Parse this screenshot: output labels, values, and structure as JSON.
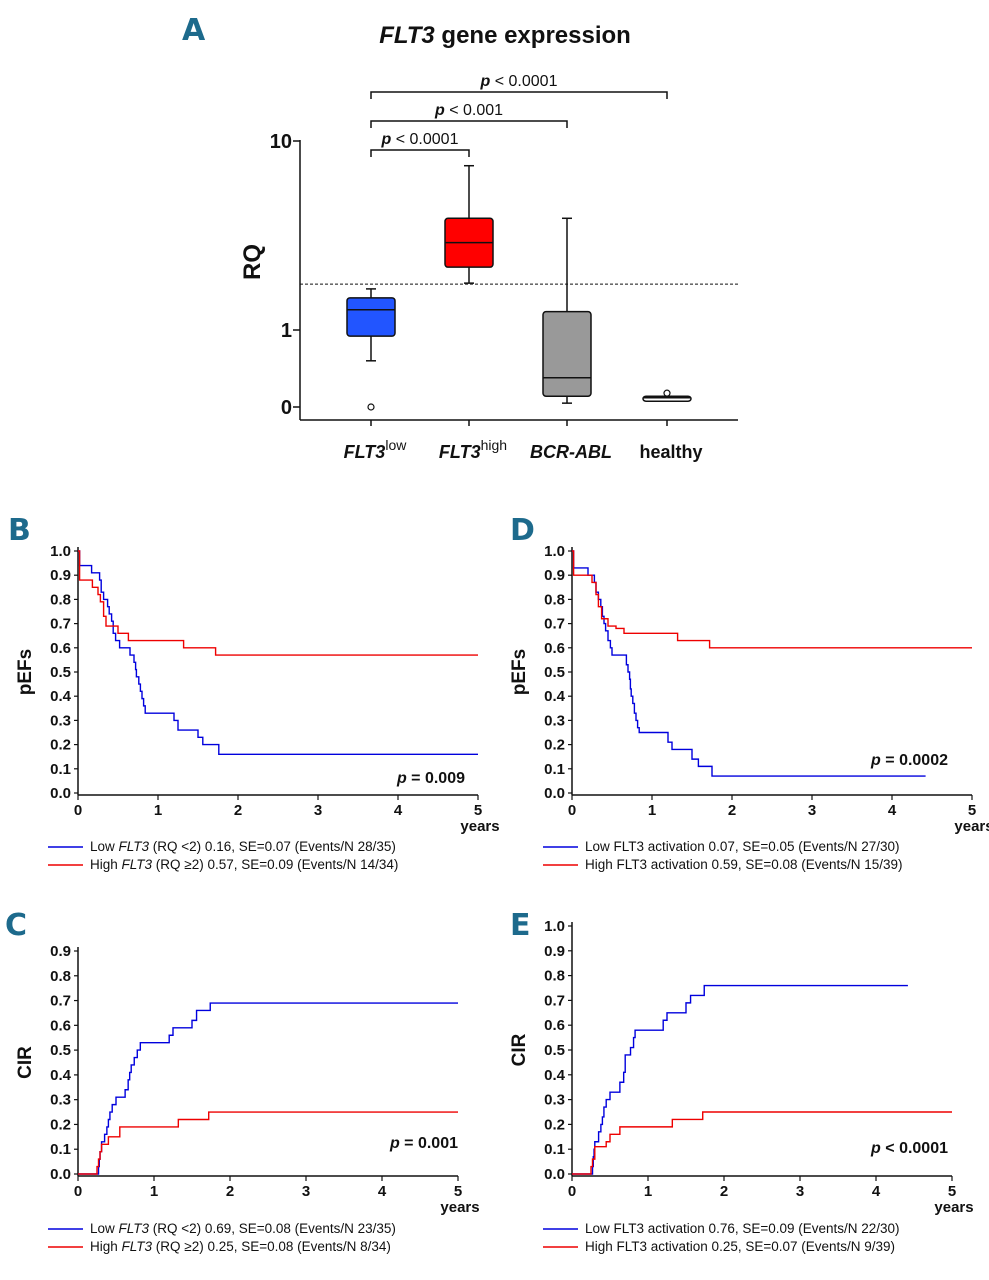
{
  "chart_data": [
    {
      "panel": "A",
      "type": "box",
      "title_italic": "FLT3",
      "title_rest": " gene expression",
      "ylabel": "RQ",
      "yticks": [
        "10",
        "1",
        "0"
      ],
      "threshold_line": 1.75,
      "categories": [
        {
          "main": "FLT3",
          "sup": "low",
          "italic": true,
          "color": "#2255ff",
          "q1": 0.92,
          "median": 1.28,
          "q3": 1.48,
          "whisker_low": 0.6,
          "whisker_high": 1.65,
          "outliers": [
            0
          ]
        },
        {
          "main": "FLT3",
          "sup": "high",
          "italic": true,
          "color": "#ff0000",
          "q1": 2.15,
          "median": 2.9,
          "q3": 3.9,
          "whisker_low": 1.77,
          "whisker_high": 7.4,
          "outliers": []
        },
        {
          "main": "BCR-ABL",
          "sup": "",
          "italic": true,
          "color": "#999999",
          "q1": 0.14,
          "median": 0.38,
          "q3": 1.25,
          "whisker_low": 0.05,
          "whisker_high": 3.9,
          "outliers": []
        },
        {
          "main": "healthy",
          "sup": "",
          "italic": false,
          "color": "#ffffff",
          "q1": 0.1,
          "median": 0.12,
          "q3": 0.14,
          "whisker_low": 0.09,
          "whisker_high": 0.14,
          "outliers": [
            0.18
          ]
        }
      ],
      "comparisons": [
        {
          "from": 0,
          "to": 1,
          "p": "< 0.0001"
        },
        {
          "from": 0,
          "to": 2,
          "p": "< 0.001"
        },
        {
          "from": 0,
          "to": 3,
          "p": "< 0.0001"
        }
      ]
    },
    {
      "panel": "B",
      "type": "line",
      "ylabel": "pEFs",
      "xlabel": "years",
      "xlim": [
        0,
        5
      ],
      "ylim": [
        0,
        1.0
      ],
      "yticks": [
        "0.0",
        "0.1",
        "0.2",
        "0.3",
        "0.4",
        "0.5",
        "0.6",
        "0.7",
        "0.8",
        "0.9",
        "1.0"
      ],
      "xticks": [
        "0",
        "1",
        "2",
        "3",
        "4",
        "5"
      ],
      "p_text": "= 0.009",
      "series": [
        {
          "color": "#0000dd",
          "legend": [
            "Low ",
            "FLT3",
            " (RQ <2) 0.16, SE=0.07 (Events/N 28/35)"
          ],
          "steps": [
            [
              0,
              1.0
            ],
            [
              0.02,
              0.94
            ],
            [
              0.17,
              0.91
            ],
            [
              0.27,
              0.88
            ],
            [
              0.29,
              0.83
            ],
            [
              0.32,
              0.8
            ],
            [
              0.37,
              0.77
            ],
            [
              0.39,
              0.74
            ],
            [
              0.42,
              0.71
            ],
            [
              0.44,
              0.66
            ],
            [
              0.47,
              0.63
            ],
            [
              0.52,
              0.6
            ],
            [
              0.65,
              0.57
            ],
            [
              0.7,
              0.54
            ],
            [
              0.72,
              0.51
            ],
            [
              0.73,
              0.48
            ],
            [
              0.76,
              0.45
            ],
            [
              0.78,
              0.42
            ],
            [
              0.8,
              0.39
            ],
            [
              0.82,
              0.36
            ],
            [
              0.84,
              0.33
            ],
            [
              1.2,
              0.3
            ],
            [
              1.25,
              0.26
            ],
            [
              1.5,
              0.23
            ],
            [
              1.56,
              0.2
            ],
            [
              1.76,
              0.16
            ]
          ],
          "end": 5.0
        },
        {
          "color": "#ee0000",
          "legend": [
            "High ",
            "FLT3",
            " (RQ ≥2) 0.57, SE=0.09 (Events/N 14/34)"
          ],
          "steps": [
            [
              0,
              1.0
            ],
            [
              0.02,
              0.88
            ],
            [
              0.18,
              0.85
            ],
            [
              0.25,
              0.82
            ],
            [
              0.28,
              0.79
            ],
            [
              0.32,
              0.73
            ],
            [
              0.35,
              0.69
            ],
            [
              0.5,
              0.66
            ],
            [
              0.63,
              0.63
            ],
            [
              1.32,
              0.6
            ],
            [
              1.72,
              0.57
            ]
          ],
          "end": 5.0
        }
      ]
    },
    {
      "panel": "D",
      "type": "line",
      "ylabel": "pEFs",
      "xlabel": "years",
      "xlim": [
        0,
        5
      ],
      "ylim": [
        0,
        1.0
      ],
      "yticks": [
        "0.0",
        "0.1",
        "0.2",
        "0.3",
        "0.4",
        "0.5",
        "0.6",
        "0.7",
        "0.8",
        "0.9",
        "1.0"
      ],
      "xticks": [
        "0",
        "1",
        "2",
        "3",
        "4",
        "5"
      ],
      "p_text": "= 0.0002",
      "series": [
        {
          "color": "#0000dd",
          "legend": [
            "Low FLT3 activation 0.07, SE=0.05 (Events/N 27/30)",
            "",
            ""
          ],
          "steps": [
            [
              0,
              1.0
            ],
            [
              0.02,
              0.93
            ],
            [
              0.2,
              0.9
            ],
            [
              0.28,
              0.87
            ],
            [
              0.3,
              0.83
            ],
            [
              0.33,
              0.8
            ],
            [
              0.36,
              0.77
            ],
            [
              0.38,
              0.73
            ],
            [
              0.4,
              0.7
            ],
            [
              0.42,
              0.67
            ],
            [
              0.45,
              0.63
            ],
            [
              0.48,
              0.6
            ],
            [
              0.5,
              0.57
            ],
            [
              0.68,
              0.53
            ],
            [
              0.7,
              0.5
            ],
            [
              0.72,
              0.47
            ],
            [
              0.73,
              0.43
            ],
            [
              0.74,
              0.4
            ],
            [
              0.76,
              0.37
            ],
            [
              0.78,
              0.33
            ],
            [
              0.8,
              0.3
            ],
            [
              0.82,
              0.27
            ],
            [
              0.84,
              0.25
            ],
            [
              1.2,
              0.21
            ],
            [
              1.25,
              0.18
            ],
            [
              1.5,
              0.14
            ],
            [
              1.58,
              0.11
            ],
            [
              1.75,
              0.07
            ]
          ],
          "end": 4.42
        },
        {
          "color": "#ee0000",
          "legend": [
            "High FLT3 activation 0.59, SE=0.08 (Events/N 15/39)",
            "",
            ""
          ],
          "steps": [
            [
              0,
              1.0
            ],
            [
              0.02,
              0.9
            ],
            [
              0.25,
              0.87
            ],
            [
              0.3,
              0.82
            ],
            [
              0.33,
              0.77
            ],
            [
              0.37,
              0.72
            ],
            [
              0.45,
              0.69
            ],
            [
              0.55,
              0.68
            ],
            [
              0.65,
              0.66
            ],
            [
              1.32,
              0.63
            ],
            [
              1.72,
              0.6
            ]
          ],
          "end": 5.0
        }
      ]
    },
    {
      "panel": "C",
      "type": "line",
      "ylabel": "CIR",
      "xlabel": "years",
      "xlim": [
        0,
        5
      ],
      "ylim": [
        0,
        0.9
      ],
      "yticks": [
        "0.0",
        "0.1",
        "0.2",
        "0.3",
        "0.4",
        "0.5",
        "0.6",
        "0.7",
        "0.8",
        "0.9"
      ],
      "xticks": [
        "0",
        "1",
        "2",
        "3",
        "4",
        "5"
      ],
      "p_text": "= 0.001",
      "series": [
        {
          "color": "#0000dd",
          "legend": [
            "Low ",
            "FLT3",
            " (RQ <2) 0.69, SE=0.08 (Events/N 23/35)"
          ],
          "steps": [
            [
              0,
              0
            ],
            [
              0.27,
              0.03
            ],
            [
              0.28,
              0.06
            ],
            [
              0.29,
              0.09
            ],
            [
              0.31,
              0.13
            ],
            [
              0.35,
              0.16
            ],
            [
              0.38,
              0.19
            ],
            [
              0.4,
              0.22
            ],
            [
              0.42,
              0.25
            ],
            [
              0.45,
              0.28
            ],
            [
              0.5,
              0.31
            ],
            [
              0.62,
              0.34
            ],
            [
              0.66,
              0.38
            ],
            [
              0.68,
              0.41
            ],
            [
              0.7,
              0.44
            ],
            [
              0.74,
              0.47
            ],
            [
              0.78,
              0.5
            ],
            [
              0.82,
              0.53
            ],
            [
              1.2,
              0.56
            ],
            [
              1.25,
              0.59
            ],
            [
              1.5,
              0.62
            ],
            [
              1.56,
              0.66
            ],
            [
              1.74,
              0.69
            ]
          ],
          "end": 5.0
        },
        {
          "color": "#ee0000",
          "legend": [
            "High ",
            "FLT3",
            " (RQ ≥2) 0.25, SE=0.08 (Events/N 8/34)"
          ],
          "steps": [
            [
              0,
              0
            ],
            [
              0.25,
              0.03
            ],
            [
              0.27,
              0.06
            ],
            [
              0.29,
              0.09
            ],
            [
              0.31,
              0.12
            ],
            [
              0.4,
              0.15
            ],
            [
              0.55,
              0.19
            ],
            [
              1.32,
              0.22
            ],
            [
              1.72,
              0.25
            ]
          ],
          "end": 5.0
        }
      ]
    },
    {
      "panel": "E",
      "type": "line",
      "ylabel": "CIR",
      "xlabel": "years",
      "xlim": [
        0,
        5
      ],
      "ylim": [
        0,
        1.0
      ],
      "yticks": [
        "0.0",
        "0.1",
        "0.2",
        "0.3",
        "0.4",
        "0.5",
        "0.6",
        "0.7",
        "0.8",
        "0.9",
        "1.0"
      ],
      "xticks": [
        "0",
        "1",
        "2",
        "3",
        "4",
        "5"
      ],
      "p_text": "< 0.0001",
      "series": [
        {
          "color": "#0000dd",
          "legend": [
            "Low FLT3 activation 0.76, SE=0.09 (Events/N 22/30)",
            "",
            ""
          ],
          "steps": [
            [
              0,
              0
            ],
            [
              0.27,
              0.03
            ],
            [
              0.28,
              0.07
            ],
            [
              0.29,
              0.1
            ],
            [
              0.3,
              0.13
            ],
            [
              0.35,
              0.17
            ],
            [
              0.38,
              0.2
            ],
            [
              0.4,
              0.23
            ],
            [
              0.42,
              0.27
            ],
            [
              0.45,
              0.3
            ],
            [
              0.5,
              0.33
            ],
            [
              0.63,
              0.37
            ],
            [
              0.68,
              0.41
            ],
            [
              0.7,
              0.48
            ],
            [
              0.77,
              0.51
            ],
            [
              0.81,
              0.55
            ],
            [
              0.83,
              0.58
            ],
            [
              1.2,
              0.62
            ],
            [
              1.25,
              0.65
            ],
            [
              1.5,
              0.69
            ],
            [
              1.56,
              0.72
            ],
            [
              1.74,
              0.76
            ]
          ],
          "end": 4.42
        },
        {
          "color": "#ee0000",
          "legend": [
            "High FLT3 activation 0.25, SE=0.07 (Events/N 9/39)",
            "",
            ""
          ],
          "steps": [
            [
              0,
              0
            ],
            [
              0.25,
              0.03
            ],
            [
              0.27,
              0.06
            ],
            [
              0.3,
              0.11
            ],
            [
              0.45,
              0.13
            ],
            [
              0.5,
              0.16
            ],
            [
              0.63,
              0.19
            ],
            [
              1.32,
              0.22
            ],
            [
              1.72,
              0.25
            ]
          ],
          "end": 5.0
        }
      ]
    }
  ]
}
